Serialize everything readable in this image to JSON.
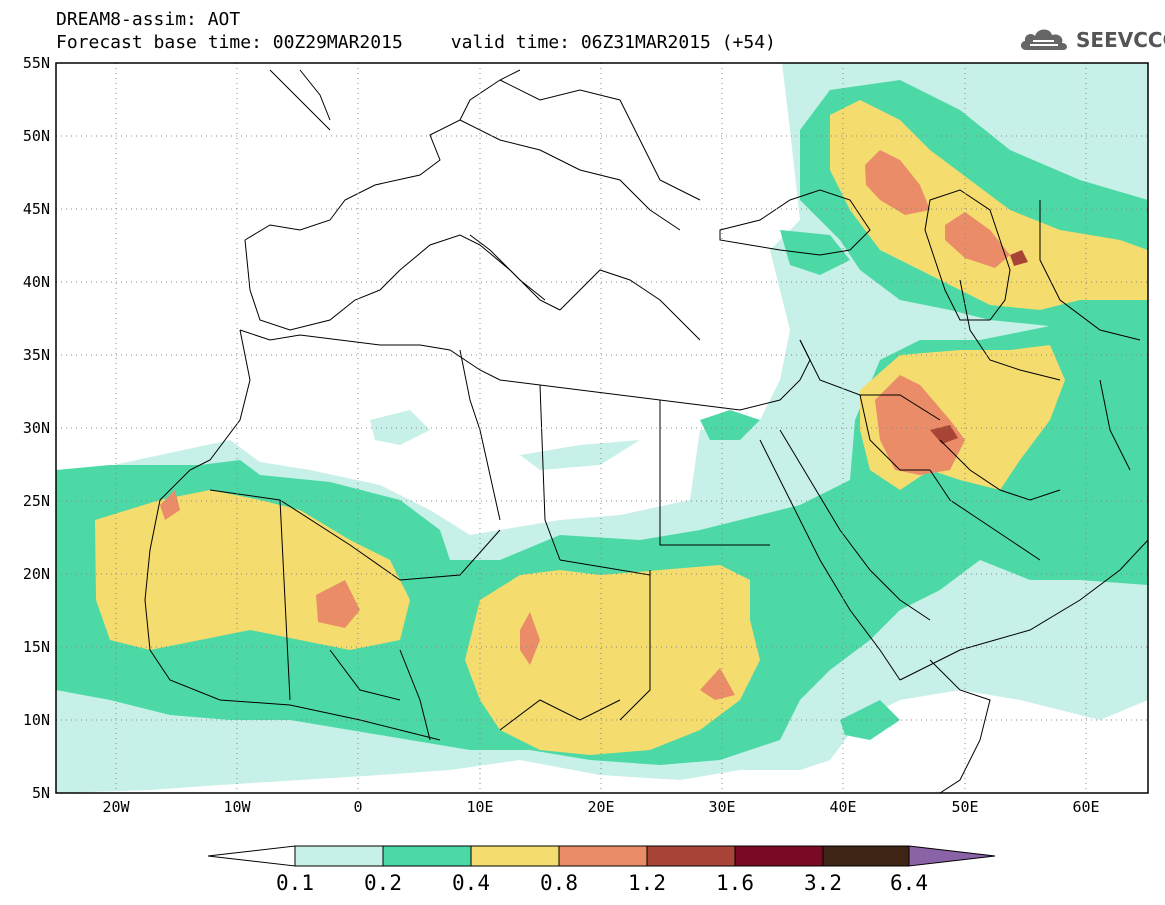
{
  "header": {
    "title": "DREAM8-assim: AOT",
    "base_time": "Forecast base time: 00Z29MAR2015",
    "valid_time": "valid time: 06Z31MAR2015 (+54)"
  },
  "logo": {
    "text": "SEEVCCC",
    "icon": "cloud-icon"
  },
  "map": {
    "lon_range": [
      -25,
      65
    ],
    "lat_range": [
      5,
      55
    ],
    "lat_ticks": [
      "5N",
      "10N",
      "15N",
      "20N",
      "25N",
      "30N",
      "35N",
      "40N",
      "45N",
      "50N",
      "55N"
    ],
    "lon_ticks": [
      "20W",
      "10W",
      "0",
      "10E",
      "20E",
      "30E",
      "40E",
      "50E",
      "60E"
    ],
    "grid": "dotted"
  },
  "colorbar": {
    "labels": [
      "0.1",
      "0.2",
      "0.4",
      "0.8",
      "1.2",
      "1.6",
      "3.2",
      "6.4"
    ],
    "colors": [
      "#ffffff",
      "#c7f0e8",
      "#4cd9a6",
      "#f5dc6e",
      "#ea8c68",
      "#a94536",
      "#7a0a24",
      "#3d2415",
      "#8a63a6"
    ]
  }
}
